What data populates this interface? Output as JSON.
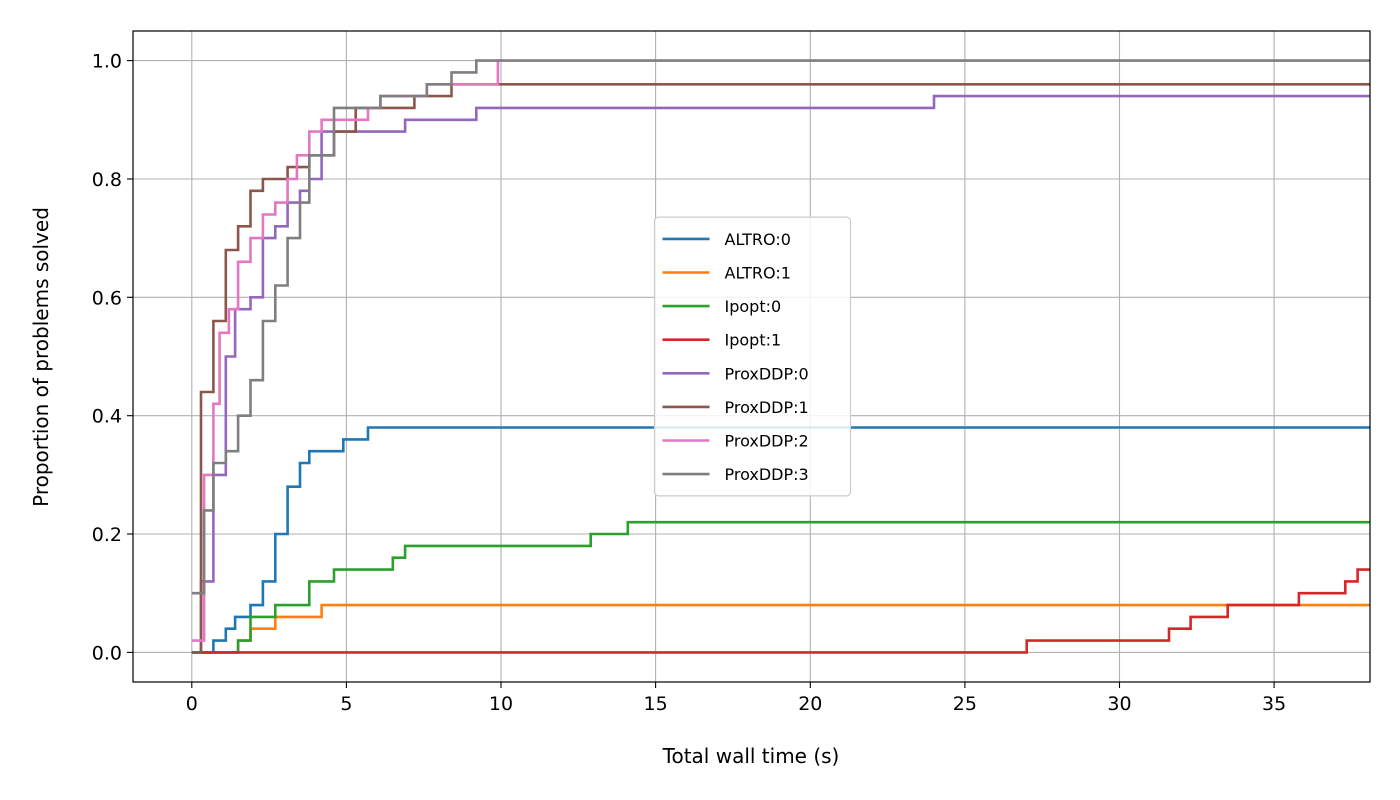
{
  "chart_data": {
    "type": "line",
    "step": "post",
    "title": "",
    "xlabel": "Total wall time (s)",
    "ylabel": "Proportion of problems solved",
    "xlim": [
      -1.9,
      38.1
    ],
    "ylim": [
      -0.05,
      1.05
    ],
    "xticks": [
      0,
      5,
      10,
      15,
      20,
      25,
      30,
      35
    ],
    "yticks": [
      0.0,
      0.2,
      0.4,
      0.6,
      0.8,
      1.0
    ],
    "xtick_labels": [
      "0",
      "5",
      "10",
      "15",
      "20",
      "25",
      "30",
      "35"
    ],
    "ytick_labels": [
      "0.0",
      "0.2",
      "0.4",
      "0.6",
      "0.8",
      "1.0"
    ],
    "grid": true,
    "legend_position": "center",
    "series": [
      {
        "name": "ALTRO:0",
        "color": "#1f77b4",
        "x": [
          0,
          0.7,
          1.1,
          1.4,
          1.9,
          2.3,
          2.7,
          3.1,
          3.5,
          3.8,
          4.9,
          5.7,
          38.1
        ],
        "y": [
          0,
          0.02,
          0.04,
          0.06,
          0.08,
          0.12,
          0.2,
          0.28,
          0.32,
          0.34,
          0.36,
          0.38,
          0.38
        ]
      },
      {
        "name": "ALTRO:1",
        "color": "#ff7f0e",
        "x": [
          0,
          1.5,
          1.9,
          2.5,
          2.7,
          4.2,
          38.1
        ],
        "y": [
          0,
          0.02,
          0.04,
          0.04,
          0.06,
          0.08,
          0.08
        ]
      },
      {
        "name": "Ipopt:0",
        "color": "#2ca02c",
        "x": [
          0,
          1.5,
          1.9,
          2.7,
          3.8,
          4.6,
          6.5,
          6.9,
          12.9,
          14.1,
          38.1
        ],
        "y": [
          0,
          0.02,
          0.06,
          0.08,
          0.12,
          0.14,
          0.16,
          0.18,
          0.2,
          0.22,
          0.22
        ]
      },
      {
        "name": "Ipopt:1",
        "color": "#d62728",
        "x": [
          0,
          27.0,
          31.6,
          32.3,
          33.5,
          35.8,
          37.3,
          37.7,
          38.1
        ],
        "y": [
          0,
          0.02,
          0.04,
          0.06,
          0.08,
          0.1,
          0.12,
          0.14,
          0.14
        ]
      },
      {
        "name": "ProxDDP:0",
        "color": "#9467bd",
        "x": [
          0,
          0.3,
          0.7,
          1.1,
          1.4,
          1.9,
          2.3,
          2.7,
          3.1,
          3.5,
          3.8,
          4.2,
          6.9,
          9.2,
          24.0,
          38.1
        ],
        "y": [
          0,
          0.12,
          0.3,
          0.5,
          0.58,
          0.6,
          0.7,
          0.72,
          0.76,
          0.78,
          0.8,
          0.88,
          0.9,
          0.92,
          0.94,
          0.94
        ]
      },
      {
        "name": "ProxDDP:1",
        "color": "#8c564b",
        "x": [
          0,
          0.3,
          0.7,
          1.1,
          1.5,
          1.9,
          2.3,
          3.1,
          3.8,
          4.6,
          5.3,
          6.5,
          7.2,
          8.4,
          38.1
        ],
        "y": [
          0,
          0.44,
          0.56,
          0.68,
          0.72,
          0.78,
          0.8,
          0.82,
          0.84,
          0.88,
          0.92,
          0.92,
          0.94,
          0.96,
          0.96
        ]
      },
      {
        "name": "ProxDDP:2",
        "color": "#e377c2",
        "x": [
          0,
          0.4,
          0.7,
          0.9,
          1.2,
          1.5,
          1.9,
          2.3,
          2.7,
          3.1,
          3.4,
          3.8,
          4.2,
          5.7,
          6.1,
          7.6,
          9.9,
          10.0
        ],
        "y": [
          0.02,
          0.3,
          0.42,
          0.54,
          0.58,
          0.66,
          0.7,
          0.74,
          0.76,
          0.8,
          0.84,
          0.88,
          0.9,
          0.92,
          0.94,
          0.96,
          1.0,
          1.0
        ]
      },
      {
        "name": "ProxDDP:3",
        "color": "#7f7f7f",
        "x": [
          0,
          0.4,
          0.7,
          1.1,
          1.5,
          1.9,
          2.3,
          2.7,
          3.1,
          3.5,
          3.8,
          4.6,
          5.3,
          6.1,
          7.6,
          8.4,
          9.2,
          38.1
        ],
        "y": [
          0.1,
          0.24,
          0.32,
          0.34,
          0.4,
          0.46,
          0.56,
          0.62,
          0.7,
          0.76,
          0.84,
          0.92,
          0.92,
          0.94,
          0.96,
          0.98,
          1.0,
          1.0
        ]
      }
    ]
  }
}
